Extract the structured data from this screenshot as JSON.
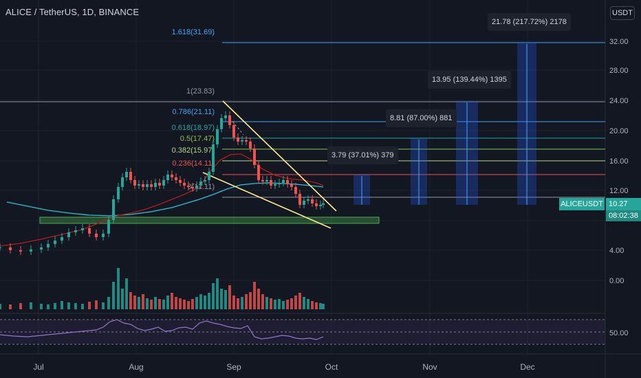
{
  "header": {
    "symbol_title": "ALICE / TetherUS, 1D, BINANCE",
    "currency_badge": "USDT"
  },
  "price_axis": {
    "labels": [
      "32.00",
      "28.00",
      "24.00",
      "20.00",
      "16.00",
      "12.00",
      "4.00",
      "0.00"
    ],
    "rsi_label": "50.00"
  },
  "time_axis": {
    "labels": [
      "Jul",
      "Aug",
      "Sep",
      "Oct",
      "Nov",
      "Dec"
    ]
  },
  "fib_levels": [
    {
      "label": "1.618(31.69)",
      "color": "#42a5f5"
    },
    {
      "label": "1(23.83)",
      "color": "#9598a1"
    },
    {
      "label": "0.786(21.11)",
      "color": "#42a5f5"
    },
    {
      "label": "0.618(18.97)",
      "color": "#26a69a"
    },
    {
      "label": "0.5(17.47)",
      "color": "#8bc34a"
    },
    {
      "label": "0.382(15.97)",
      "color": "#b2d98b"
    },
    {
      "label": "0.236(14.11)",
      "color": "#ef5350"
    },
    {
      "label": "0(11.11)",
      "color": "#9598a1"
    }
  ],
  "projections": [
    {
      "label": "3.79 (37.01%) 379"
    },
    {
      "label": "8.81 (87.00%) 881"
    },
    {
      "label": "13.95 (139.44%) 1395"
    },
    {
      "label": "21.78 (217.72%) 2178"
    }
  ],
  "last_price": {
    "symbol": "ALICEUSDT",
    "value": "10.27",
    "countdown": "08:02:38"
  },
  "colors": {
    "background": "#131722",
    "up": "#26a69a",
    "down": "#ef5350",
    "wedge": "#ffeb8a",
    "support_zone": "#4caf50",
    "measure": "#2962ff"
  }
}
